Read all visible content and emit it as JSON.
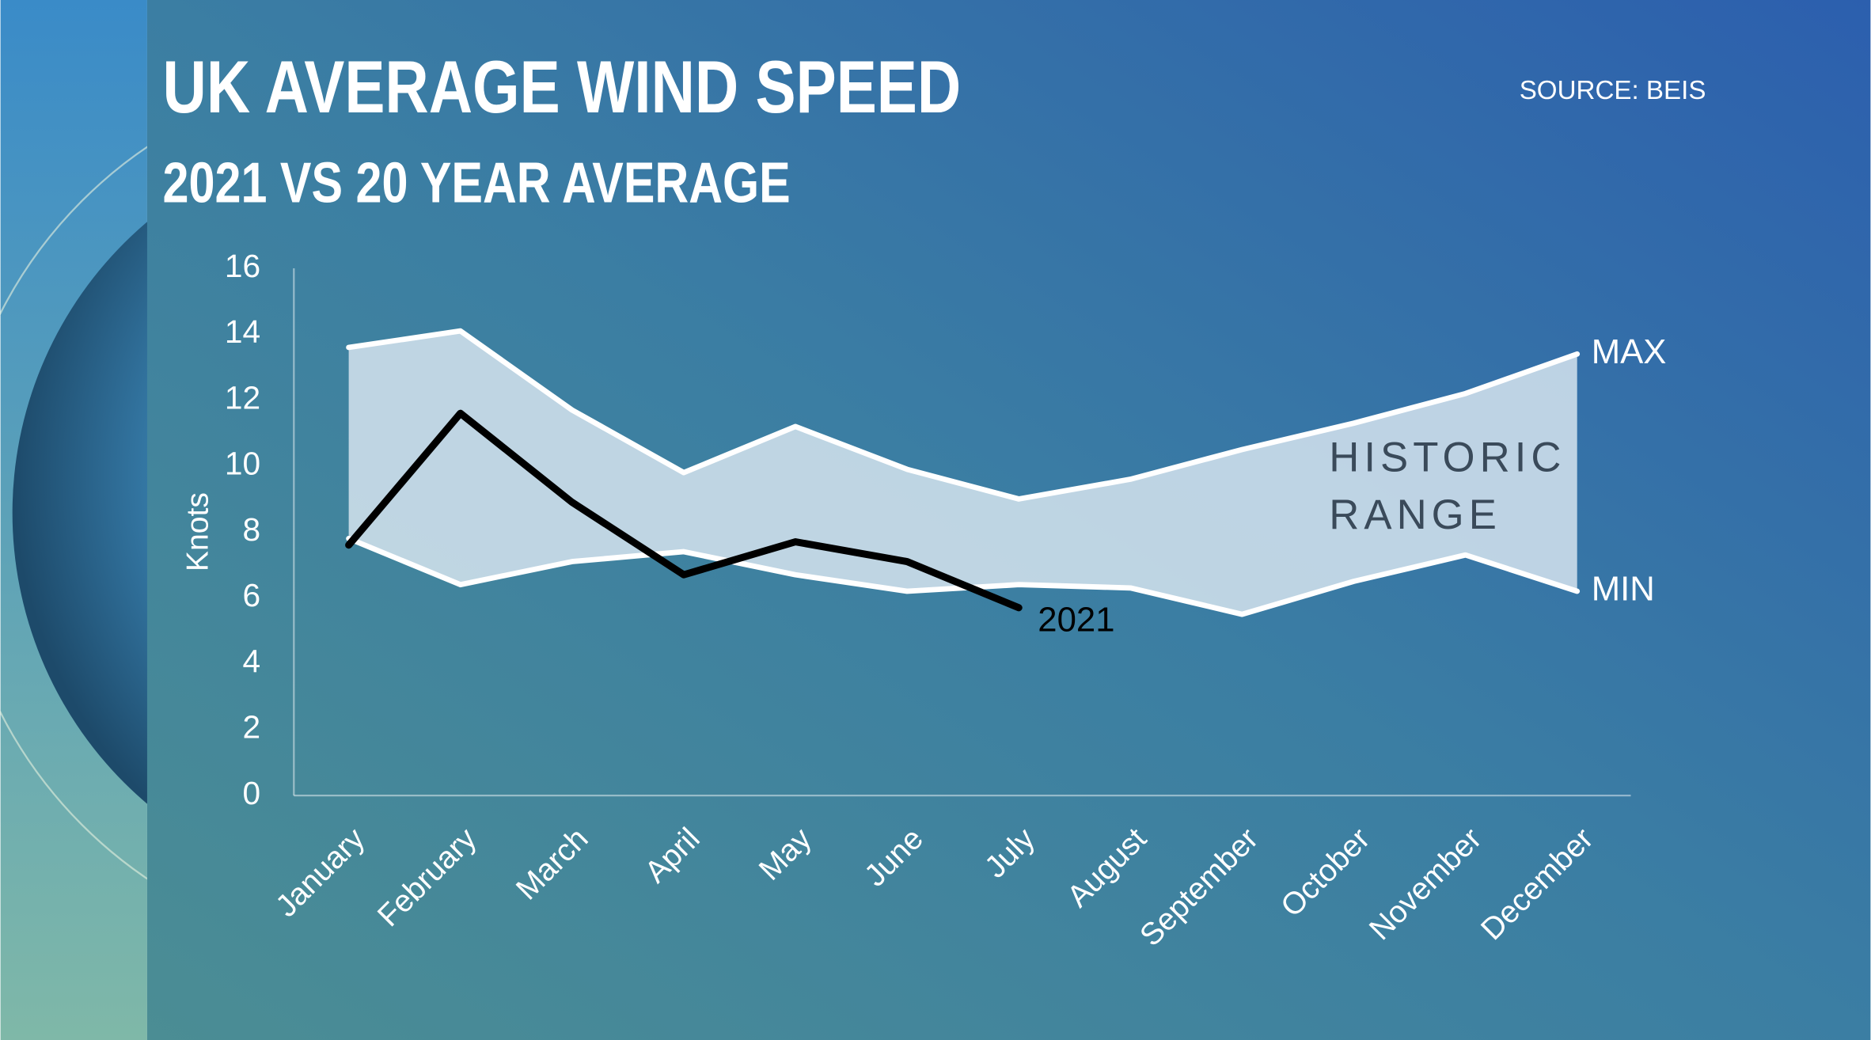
{
  "chart_data": {
    "type": "line",
    "title": "UK AVERAGE WIND SPEED",
    "subtitle": "2021 VS 20 YEAR AVERAGE",
    "source": "SOURCE: BEIS",
    "y_label": "Knots",
    "range_label": [
      "HISTORIC",
      "RANGE"
    ],
    "categories": [
      "January",
      "February",
      "March",
      "April",
      "May",
      "June",
      "July",
      "August",
      "September",
      "October",
      "November",
      "December"
    ],
    "series": [
      {
        "name": "MAX",
        "color": "#ffffff",
        "values": [
          13.6,
          14.1,
          11.7,
          9.8,
          11.2,
          9.9,
          9.0,
          9.6,
          10.5,
          11.3,
          12.2,
          13.4
        ]
      },
      {
        "name": "MIN",
        "color": "#ffffff",
        "values": [
          7.8,
          6.4,
          7.1,
          7.4,
          6.7,
          6.2,
          6.4,
          6.3,
          5.5,
          6.5,
          7.3,
          6.2
        ]
      },
      {
        "name": "2021",
        "color": "#000000",
        "values": [
          7.6,
          11.6,
          8.9,
          6.7,
          7.7,
          7.1,
          5.7,
          null,
          null,
          null,
          null,
          null
        ]
      }
    ],
    "range_fill": "#d6e4ee",
    "ylim": [
      0,
      16
    ],
    "yticks": [
      0,
      2,
      4,
      6,
      8,
      10,
      12,
      14,
      16
    ]
  }
}
